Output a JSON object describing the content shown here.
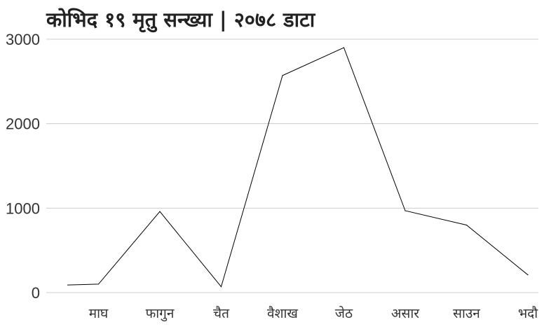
{
  "chart_data": {
    "type": "line",
    "title": "कोभिद १९ मृतु सन्ख्या | २०७८ डाटा",
    "xlabel": "",
    "ylabel": "",
    "ylim": [
      0,
      3000
    ],
    "yticks": [
      "0",
      "1000",
      "2000",
      "3000"
    ],
    "ytick_values": [
      0,
      1000,
      2000,
      3000
    ],
    "x_tick_labels": [
      "माघ",
      "फागुन",
      "चैत",
      "वैशाख",
      "जेठ",
      "असार",
      "साउन",
      "भदौ"
    ],
    "x_tick_values": [
      1,
      2,
      3,
      4,
      5,
      6,
      7,
      8
    ],
    "grid": "horizontal",
    "line_color": "#000000",
    "series": [
      {
        "x": [
          0.5,
          1,
          2,
          3,
          4,
          5,
          6,
          7,
          8
        ],
        "values": [
          90,
          100,
          960,
          70,
          2570,
          2900,
          970,
          800,
          210
        ]
      }
    ]
  }
}
